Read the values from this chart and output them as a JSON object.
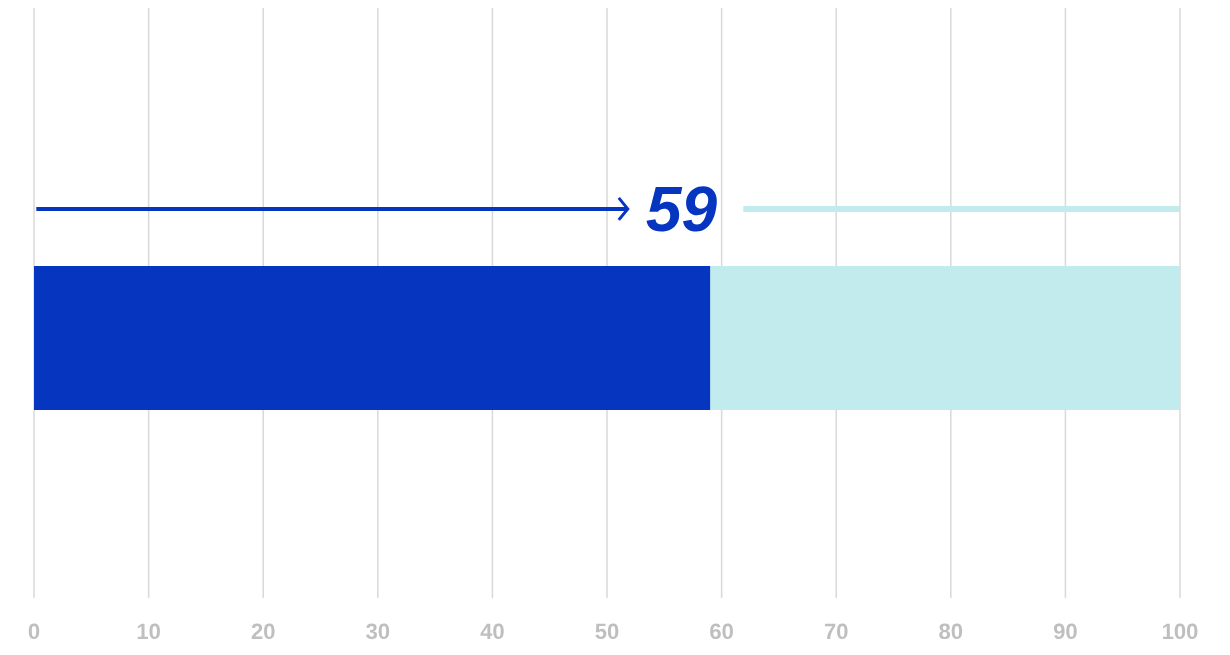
{
  "chart_data": {
    "type": "bar",
    "orientation": "horizontal",
    "stacked": true,
    "categories": [
      null
    ],
    "series": [
      {
        "color": "#0635c0",
        "values": [
          59
        ],
        "value_labels": [
          "59"
        ]
      },
      {
        "color": "#c2ebee",
        "values": [
          41
        ]
      }
    ],
    "xlim": [
      0,
      100
    ],
    "xticks": [
      0,
      10,
      20,
      30,
      40,
      50,
      60,
      70,
      80,
      90,
      100
    ],
    "grid": "x",
    "tick_labels": "x"
  }
}
